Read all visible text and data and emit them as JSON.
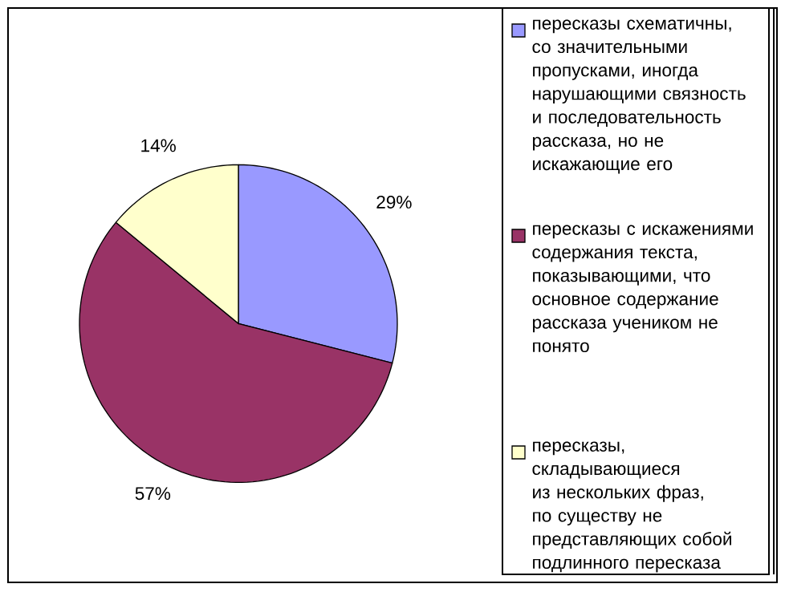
{
  "chart_data": {
    "type": "pie",
    "categories": [
      "пересказы схематичны, со значительными пропусками, иногда нарушающими связность и последовательность рассказа, но не искажающие его",
      "пересказы с искажениями содержания текста, показывающими, что основное содержание рассказа учеником не понято",
      "пересказы, складывающиеся из нескольких фраз, по существу не представляющих собой подлинного пересказа"
    ],
    "values": [
      29,
      57,
      14
    ],
    "colors": [
      "#9999ff",
      "#993366",
      "#ffffcc"
    ],
    "value_labels": [
      "29%",
      "57%",
      "14%"
    ],
    "legend": "right"
  }
}
